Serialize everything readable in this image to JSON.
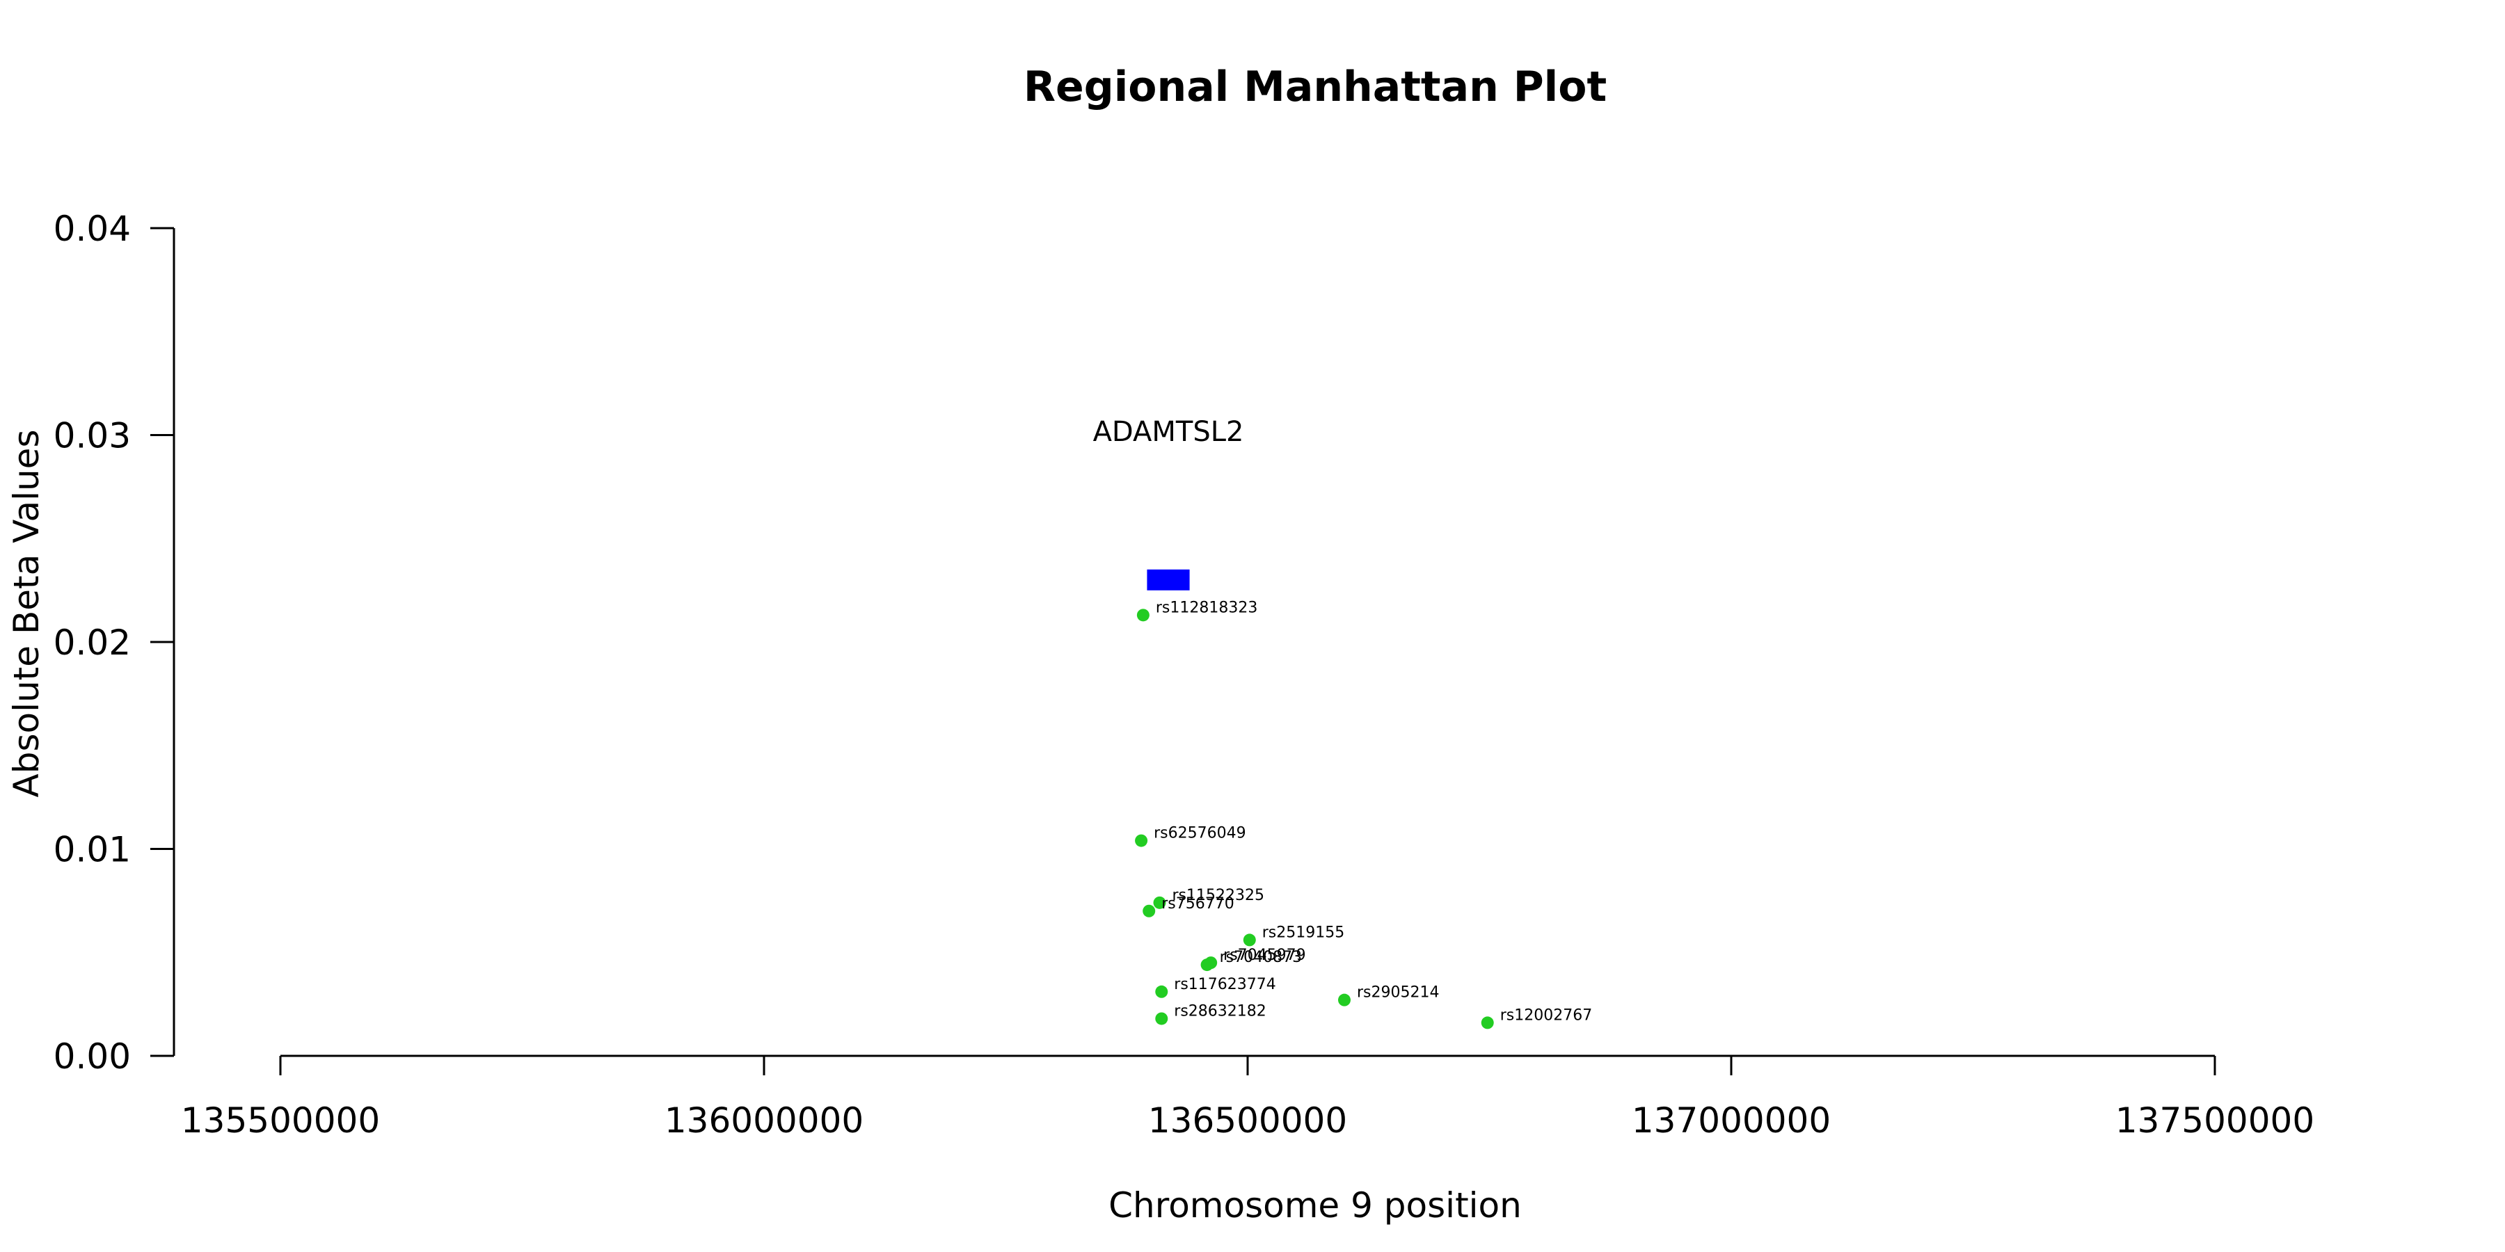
{
  "chart_data": {
    "type": "scatter",
    "title": "Regional Manhattan Plot",
    "xlabel": "Chromosome 9 position",
    "ylabel": "Absolute Beta Values",
    "xlim": [
      135500000,
      137500000
    ],
    "ylim": [
      0,
      0.04
    ],
    "x_ticks": [
      "135500000",
      "136000000",
      "136500000",
      "137000000",
      "137500000"
    ],
    "y_ticks": [
      "0.00",
      "0.01",
      "0.02",
      "0.03",
      "0.04"
    ],
    "grid": false,
    "point_color": "#22cc22",
    "gene_color": "#0000ff",
    "genes": [
      {
        "name": "ADAMTSL2",
        "start": 136396000,
        "end": 136440000,
        "y": 0.023
      }
    ],
    "points": [
      {
        "label": "rs112818323",
        "x": 136392000,
        "y": 0.0213
      },
      {
        "label": "rs62576049",
        "x": 136390000,
        "y": 0.0104
      },
      {
        "label": "rs11522325",
        "x": 136409000,
        "y": 0.0074
      },
      {
        "label": "rs756770",
        "x": 136398000,
        "y": 0.007
      },
      {
        "label": "rs2519155",
        "x": 136502000,
        "y": 0.0056
      },
      {
        "label": "rs7045979",
        "x": 136462000,
        "y": 0.0045
      },
      {
        "label": "rs7040873",
        "x": 136458000,
        "y": 0.0044
      },
      {
        "label": "rs117623774",
        "x": 136411000,
        "y": 0.0031
      },
      {
        "label": "rs2905214",
        "x": 136600000,
        "y": 0.0027
      },
      {
        "label": "rs28632182",
        "x": 136411000,
        "y": 0.0018
      },
      {
        "label": "rs12002767",
        "x": 136748000,
        "y": 0.0016
      }
    ]
  }
}
